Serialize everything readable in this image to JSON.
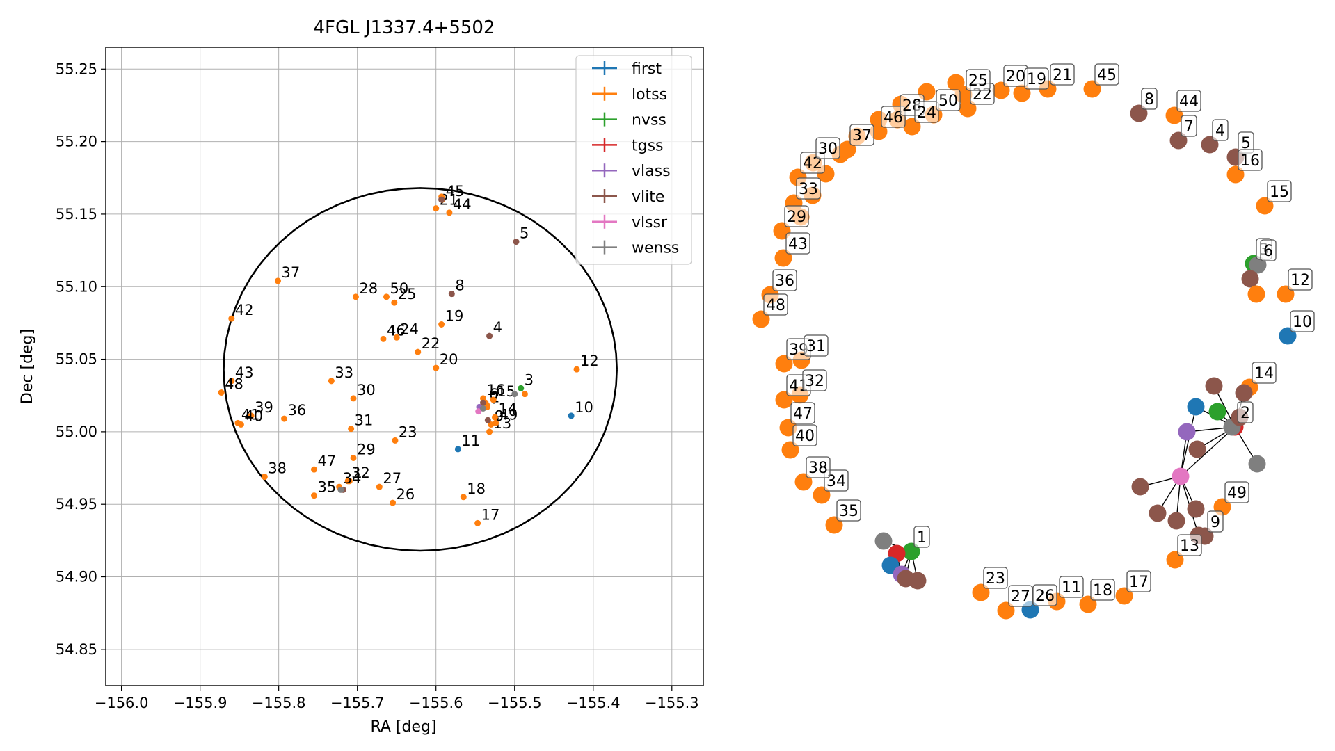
{
  "chart_data": [
    {
      "type": "scatter",
      "title": "4FGL J1337.4+5502",
      "xlabel": "RA [deg]",
      "ylabel": "Dec [deg]",
      "xlim": [
        -156.02,
        -155.26
      ],
      "ylim": [
        54.825,
        55.265
      ],
      "xticks": [
        -156.0,
        -155.9,
        -155.8,
        -155.7,
        -155.6,
        -155.5,
        -155.4,
        -155.3
      ],
      "xtick_labels": [
        "−156.0",
        "−155.9",
        "−155.8",
        "−155.7",
        "−155.6",
        "−155.5",
        "−155.4",
        "−155.3"
      ],
      "yticks": [
        54.85,
        54.9,
        54.95,
        55.0,
        55.05,
        55.1,
        55.15,
        55.2,
        55.25
      ],
      "ytick_labels": [
        "54.85",
        "54.90",
        "54.95",
        "55.00",
        "55.05",
        "55.10",
        "55.15",
        "55.20",
        "55.25"
      ],
      "grid": true,
      "legend_position": "top-right",
      "ellipse": {
        "center": [
          -155.62,
          55.043
        ],
        "radius_ra": 0.25,
        "radius_dec": 0.125,
        "color": "#000000"
      },
      "series": [
        {
          "name": "first",
          "color": "#1f77b4"
        },
        {
          "name": "lotss",
          "color": "#ff7f0e"
        },
        {
          "name": "nvss",
          "color": "#2ca02c"
        },
        {
          "name": "tgss",
          "color": "#d62728"
        },
        {
          "name": "vlass",
          "color": "#9467bd"
        },
        {
          "name": "vlite",
          "color": "#8c564b"
        },
        {
          "name": "vlssr",
          "color": "#e377c2"
        },
        {
          "name": "wenss",
          "color": "#7f7f7f"
        }
      ],
      "points": [
        {
          "label": "1",
          "survey": "lotss",
          "x": -155.71,
          "y": 54.966
        },
        {
          "label": "2",
          "survey": "lotss",
          "x": -155.535,
          "y": 55.018
        },
        {
          "label": "3",
          "survey": "nvss",
          "x": -155.492,
          "y": 55.03
        },
        {
          "label": "4",
          "survey": "vlite",
          "x": -155.532,
          "y": 55.066
        },
        {
          "label": "5",
          "survey": "vlite",
          "x": -155.498,
          "y": 55.131
        },
        {
          "label": "6",
          "survey": "lotss",
          "x": -155.537,
          "y": 55.02
        },
        {
          "label": "7",
          "survey": "lotss",
          "x": -155.535,
          "y": 55.017
        },
        {
          "label": "8",
          "survey": "vlite",
          "x": -155.58,
          "y": 55.095
        },
        {
          "label": "9",
          "survey": "lotss",
          "x": -155.53,
          "y": 55.005
        },
        {
          "label": "10",
          "survey": "first",
          "x": -155.428,
          "y": 55.011
        },
        {
          "label": "11",
          "survey": "first",
          "x": -155.572,
          "y": 54.988
        },
        {
          "label": "12",
          "survey": "lotss",
          "x": -155.421,
          "y": 55.043
        },
        {
          "label": "13",
          "survey": "lotss",
          "x": -155.532,
          "y": 55.0
        },
        {
          "label": "14",
          "survey": "lotss",
          "x": -155.525,
          "y": 55.01
        },
        {
          "label": "15",
          "survey": "lotss",
          "x": -155.527,
          "y": 55.022
        },
        {
          "label": "16",
          "survey": "lotss",
          "x": -155.54,
          "y": 55.023
        },
        {
          "label": "17",
          "survey": "lotss",
          "x": -155.547,
          "y": 54.937
        },
        {
          "label": "18",
          "survey": "lotss",
          "x": -155.565,
          "y": 54.955
        },
        {
          "label": "19",
          "survey": "lotss",
          "x": -155.593,
          "y": 55.074
        },
        {
          "label": "20",
          "survey": "lotss",
          "x": -155.6,
          "y": 55.044
        },
        {
          "label": "21",
          "survey": "lotss",
          "x": -155.6,
          "y": 55.154
        },
        {
          "label": "22",
          "survey": "lotss",
          "x": -155.623,
          "y": 55.055
        },
        {
          "label": "23",
          "survey": "lotss",
          "x": -155.652,
          "y": 54.994
        },
        {
          "label": "24",
          "survey": "lotss",
          "x": -155.65,
          "y": 55.065
        },
        {
          "label": "25",
          "survey": "lotss",
          "x": -155.653,
          "y": 55.089
        },
        {
          "label": "26",
          "survey": "lotss",
          "x": -155.655,
          "y": 54.951
        },
        {
          "label": "27",
          "survey": "lotss",
          "x": -155.672,
          "y": 54.962
        },
        {
          "label": "28",
          "survey": "lotss",
          "x": -155.702,
          "y": 55.093
        },
        {
          "label": "29",
          "survey": "lotss",
          "x": -155.705,
          "y": 54.982
        },
        {
          "label": "30",
          "survey": "lotss",
          "x": -155.705,
          "y": 55.023
        },
        {
          "label": "31",
          "survey": "lotss",
          "x": -155.708,
          "y": 55.002
        },
        {
          "label": "32",
          "survey": "lotss",
          "x": -155.712,
          "y": 54.966
        },
        {
          "label": "33",
          "survey": "lotss",
          "x": -155.733,
          "y": 55.035
        },
        {
          "label": "34",
          "survey": "lotss",
          "x": -155.723,
          "y": 54.962
        },
        {
          "label": "35",
          "survey": "lotss",
          "x": -155.755,
          "y": 54.956
        },
        {
          "label": "36",
          "survey": "lotss",
          "x": -155.793,
          "y": 55.009
        },
        {
          "label": "37",
          "survey": "lotss",
          "x": -155.801,
          "y": 55.104
        },
        {
          "label": "38",
          "survey": "lotss",
          "x": -155.818,
          "y": 54.969
        },
        {
          "label": "39",
          "survey": "lotss",
          "x": -155.835,
          "y": 55.011
        },
        {
          "label": "40",
          "survey": "lotss",
          "x": -155.848,
          "y": 55.005
        },
        {
          "label": "41",
          "survey": "lotss",
          "x": -155.852,
          "y": 55.006
        },
        {
          "label": "42",
          "survey": "lotss",
          "x": -155.86,
          "y": 55.078
        },
        {
          "label": "43",
          "survey": "lotss",
          "x": -155.86,
          "y": 55.035
        },
        {
          "label": "44",
          "survey": "lotss",
          "x": -155.583,
          "y": 55.151
        },
        {
          "label": "45",
          "survey": "lotss",
          "x": -155.592,
          "y": 55.16
        },
        {
          "label": "46",
          "survey": "lotss",
          "x": -155.667,
          "y": 55.064
        },
        {
          "label": "47",
          "survey": "lotss",
          "x": -155.755,
          "y": 54.974
        },
        {
          "label": "48",
          "survey": "lotss",
          "x": -155.873,
          "y": 55.027
        },
        {
          "label": "49",
          "survey": "lotss",
          "x": -155.524,
          "y": 55.006
        },
        {
          "label": "50",
          "survey": "lotss",
          "x": -155.663,
          "y": 55.093
        },
        {
          "label": "",
          "survey": "wenss",
          "x": -155.5,
          "y": 55.026
        },
        {
          "label": "",
          "survey": "lotss",
          "x": -155.487,
          "y": 55.026
        },
        {
          "label": "",
          "survey": "vlite",
          "x": -155.534,
          "y": 55.008
        },
        {
          "label": "",
          "survey": "vlass",
          "x": -155.545,
          "y": 55.017
        },
        {
          "label": "",
          "survey": "vlssr",
          "x": -155.546,
          "y": 55.014
        },
        {
          "label": "",
          "survey": "vlite",
          "x": -155.54,
          "y": 55.02
        },
        {
          "label": "",
          "survey": "wenss",
          "x": -155.54,
          "y": 55.016
        },
        {
          "label": "",
          "survey": "vlite",
          "x": -155.718,
          "y": 54.96
        },
        {
          "label": "",
          "survey": "wenss",
          "x": -155.721,
          "y": 54.96
        },
        {
          "label": "",
          "survey": "lotss",
          "x": -155.593,
          "y": 55.162
        },
        {
          "label": "",
          "survey": "vlite",
          "x": -155.593,
          "y": 55.16
        }
      ]
    },
    {
      "type": "network",
      "nodes": [
        {
          "label": "",
          "survey": "lotss"
        },
        {
          "label": "",
          "survey": "lotss"
        },
        {
          "label": "",
          "survey": "lotss"
        },
        {
          "label": "",
          "survey": "lotss"
        },
        {
          "label": "",
          "survey": "lotss"
        },
        {
          "label": "",
          "survey": "lotss"
        },
        {
          "label": "",
          "survey": "lotss"
        },
        {
          "label": "",
          "survey": "lotss"
        },
        {
          "label": "",
          "survey": "lotss"
        },
        {
          "label": "21",
          "survey": "lotss"
        },
        {
          "label": "45",
          "survey": "lotss"
        },
        {
          "label": "8",
          "survey": "vlite"
        },
        {
          "label": "44",
          "survey": "lotss"
        },
        {
          "label": "7",
          "survey": "vlite"
        },
        {
          "label": "4",
          "survey": "vlite"
        },
        {
          "label": "5",
          "survey": "vlite"
        },
        {
          "label": "16",
          "survey": "lotss"
        },
        {
          "label": "15",
          "survey": "lotss"
        },
        {
          "label": "3",
          "survey": "nvss"
        },
        {
          "label": "6",
          "survey": "wenss"
        },
        {
          "label": "",
          "survey": "vlite"
        },
        {
          "label": "",
          "survey": "lotss"
        },
        {
          "label": "12",
          "survey": "lotss"
        },
        {
          "label": "10",
          "survey": "first"
        },
        {
          "label": "14",
          "survey": "lotss"
        },
        {
          "label": "2",
          "survey": "tgss"
        },
        {
          "label": "",
          "survey": "first"
        },
        {
          "label": "",
          "survey": "nvss"
        },
        {
          "label": "",
          "survey": "vlass"
        },
        {
          "label": "",
          "survey": "vlssr"
        },
        {
          "label": "",
          "survey": "wenss"
        },
        {
          "label": "",
          "survey": "wenss"
        },
        {
          "label": "",
          "survey": "vlite"
        },
        {
          "label": "",
          "survey": "vlite"
        },
        {
          "label": "",
          "survey": "vlite"
        },
        {
          "label": "",
          "survey": "vlite"
        },
        {
          "label": "",
          "survey": "vlite"
        },
        {
          "label": "",
          "survey": "vlite"
        },
        {
          "label": "",
          "survey": "vlite"
        },
        {
          "label": "",
          "survey": "vlite"
        },
        {
          "label": "",
          "survey": "vlite"
        },
        {
          "label": "49",
          "survey": "lotss"
        },
        {
          "label": "9",
          "survey": "vlite"
        },
        {
          "label": "13",
          "survey": "lotss"
        },
        {
          "label": "17",
          "survey": "lotss"
        },
        {
          "label": "18",
          "survey": "lotss"
        },
        {
          "label": "11",
          "survey": "lotss"
        },
        {
          "label": "26",
          "survey": "first"
        },
        {
          "label": "27",
          "survey": "lotss"
        },
        {
          "label": "23",
          "survey": "lotss"
        },
        {
          "label": "1",
          "survey": "nvss"
        },
        {
          "label": "",
          "survey": "wenss"
        },
        {
          "label": "",
          "survey": "tgss"
        },
        {
          "label": "",
          "survey": "first"
        },
        {
          "label": "",
          "survey": "vlass"
        },
        {
          "label": "",
          "survey": "vlite"
        },
        {
          "label": "",
          "survey": "vlite"
        },
        {
          "label": "35",
          "survey": "lotss"
        },
        {
          "label": "34",
          "survey": "lotss"
        },
        {
          "label": "38",
          "survey": "lotss"
        },
        {
          "label": "40",
          "survey": "lotss"
        },
        {
          "label": "47",
          "survey": "lotss"
        },
        {
          "label": "41",
          "survey": "lotss"
        },
        {
          "label": "32",
          "survey": "lotss"
        },
        {
          "label": "39",
          "survey": "lotss"
        },
        {
          "label": "31",
          "survey": "lotss"
        },
        {
          "label": "48",
          "survey": "lotss"
        },
        {
          "label": "36",
          "survey": "lotss"
        },
        {
          "label": "43",
          "survey": "lotss"
        },
        {
          "label": "29",
          "survey": "lotss"
        },
        {
          "label": "33",
          "survey": "lotss"
        },
        {
          "label": "42",
          "survey": "lotss"
        },
        {
          "label": "30",
          "survey": "lotss"
        },
        {
          "label": "37",
          "survey": "lotss"
        },
        {
          "label": "46",
          "survey": "lotss"
        },
        {
          "label": "28",
          "survey": "lotss"
        },
        {
          "label": "24",
          "survey": "lotss"
        },
        {
          "label": "50",
          "survey": "lotss"
        },
        {
          "label": "22",
          "survey": "lotss"
        },
        {
          "label": "25",
          "survey": "lotss"
        },
        {
          "label": "20",
          "survey": "lotss"
        },
        {
          "label": "19",
          "survey": "lotss"
        }
      ],
      "edges": [
        [
          18,
          19
        ],
        [
          18,
          20
        ],
        [
          19,
          20
        ],
        [
          20,
          21
        ],
        [
          25,
          26
        ],
        [
          25,
          27
        ],
        [
          25,
          28
        ],
        [
          25,
          29
        ],
        [
          25,
          30
        ],
        [
          25,
          31
        ],
        [
          25,
          32
        ],
        [
          25,
          33
        ],
        [
          25,
          34
        ],
        [
          25,
          35
        ],
        [
          29,
          36
        ],
        [
          29,
          37
        ],
        [
          29,
          38
        ],
        [
          29,
          39
        ],
        [
          29,
          40
        ],
        [
          29,
          26
        ],
        [
          29,
          28
        ],
        [
          50,
          51
        ],
        [
          50,
          52
        ],
        [
          50,
          53
        ],
        [
          50,
          54
        ],
        [
          50,
          55
        ],
        [
          50,
          56
        ],
        [
          52,
          53
        ],
        [
          52,
          54
        ]
      ]
    }
  ]
}
